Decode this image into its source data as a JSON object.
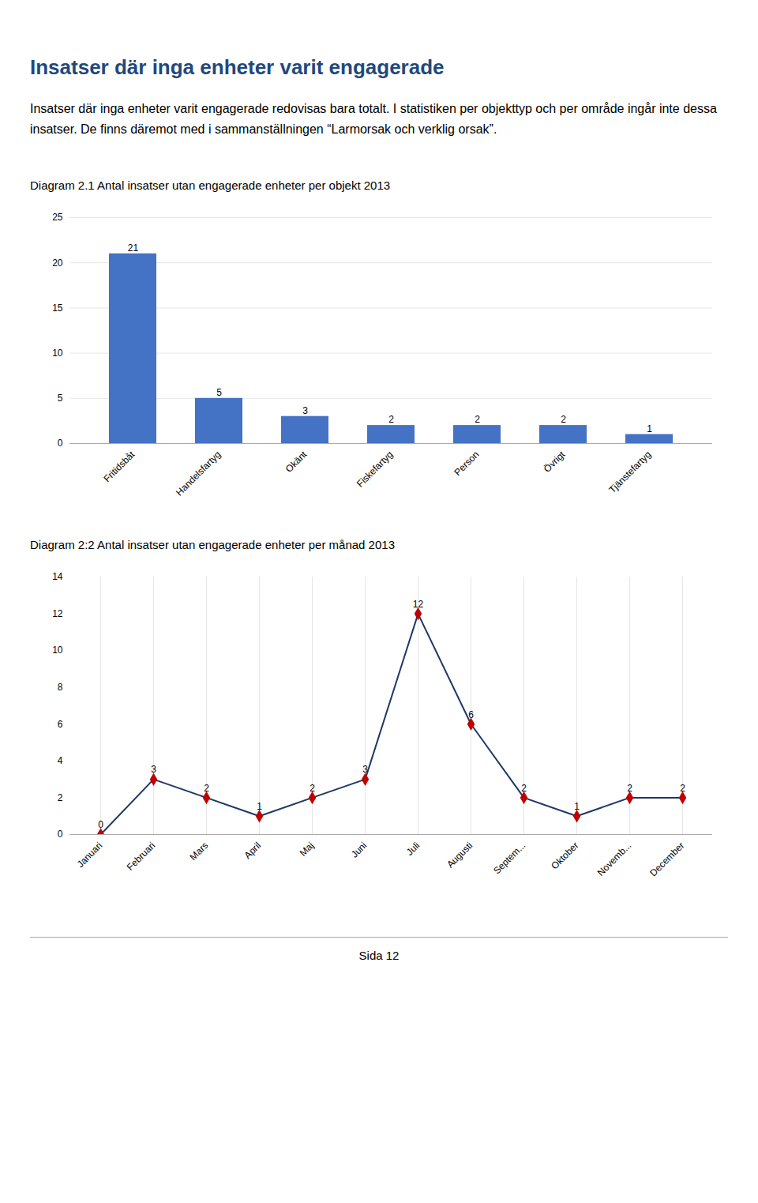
{
  "title": "Insatser där inga enheter varit engagerade",
  "subtitle": "Insatser där inga enheter varit engagerade redovisas bara totalt. I statistiken per objekttyp och per område ingår inte dessa insatser. De finns däremot med i sammanställningen “Larmorsak och verklig orsak”.",
  "caption": "Sida 12",
  "title_color": "#1F497D",
  "chart_data": [
    {
      "type": "bar",
      "title": "Diagram 2.1 Antal insatser utan engagerade enheter per objekt 2013",
      "categories": [
        "Fritidsbåt",
        "Handelsfartyg",
        "Okänt",
        "Fiskefartyg",
        "Person",
        "Övrigt",
        "Tjänstefartyg"
      ],
      "values": [
        21,
        5,
        3,
        2,
        2,
        2,
        1
      ],
      "color": "#4472C4",
      "ylim": [
        0,
        25
      ],
      "yticks": [
        0,
        5,
        10,
        15,
        20,
        25
      ],
      "grid": "y",
      "data_labels": true
    },
    {
      "type": "line",
      "title": "Diagram 2:2 Antal insatser utan engagerade enheter per månad 2013",
      "categories": [
        "Januari",
        "Februari",
        "Mars",
        "April",
        "Maj",
        "Juni",
        "Juli",
        "Augusti",
        "Septem...",
        "Oktober",
        "Novemb...",
        "December"
      ],
      "series": [
        {
          "type": "line",
          "color": "#1F3864",
          "line_style": "solid",
          "values": [
            0,
            3,
            2,
            1,
            2,
            3,
            12,
            6,
            2,
            1,
            2,
            2
          ]
        },
        {
          "type": "scatter",
          "color": "#C00000",
          "marker": "diamond",
          "values": [
            0,
            3,
            2,
            1,
            2,
            3,
            12,
            6,
            2,
            1,
            2,
            2
          ]
        }
      ],
      "ylim": [
        0,
        14
      ],
      "yticks": [
        0,
        2,
        4,
        6,
        8,
        10,
        12,
        14
      ],
      "grid": "x",
      "data_labels": true
    }
  ]
}
